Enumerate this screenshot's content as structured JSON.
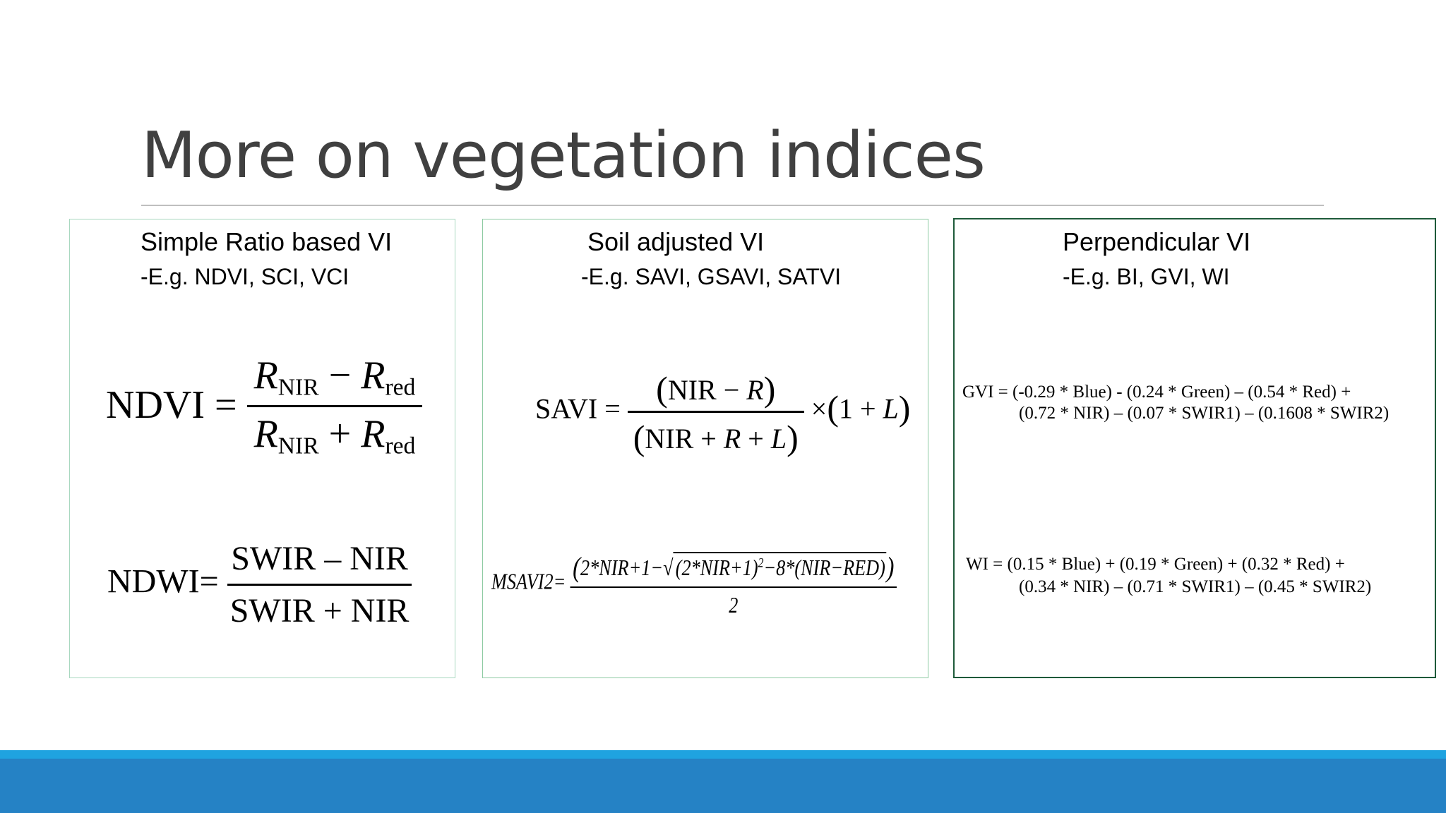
{
  "slide": {
    "title": "More on vegetation indices"
  },
  "panels": {
    "simple_ratio": {
      "heading": "Simple Ratio based VI",
      "examples": "-E.g. NDVI, SCI, VCI",
      "ndvi": {
        "lhs": "NDVI",
        "eq": "=",
        "r": "R",
        "nir": "NIR",
        "red": "red",
        "minus": "−",
        "plus": "+"
      },
      "ndwi": {
        "lhs": "NDWI",
        "eq": "=",
        "numerator": "SWIR – NIR",
        "denominator": "SWIR + NIR"
      }
    },
    "soil_adjusted": {
      "heading": "Soil adjusted VI",
      "examples": "-E.g. SAVI, GSAVI, SATVI",
      "savi": {
        "lhs": "SAVI",
        "eq": "=",
        "num_nir": "NIR",
        "num_op": "−",
        "r": "R",
        "den_nir": "NIR",
        "plus": "+",
        "l": "L",
        "times": "×",
        "one": "1"
      },
      "msavi2": {
        "lhs": "MSAVI2",
        "eq": "=",
        "part1": "2*",
        "nir": "NIR",
        "part2": "+1−",
        "part3": "(2*",
        "part4": "+1)",
        "exp": "2",
        "part5": "−8*(",
        "red": "NIR−RED",
        "part6": ")",
        "denominator": "2"
      }
    },
    "perpendicular": {
      "heading": "Perpendicular VI",
      "examples": "-E.g. BI, GVI, WI",
      "gvi": {
        "line1": "GVI = (-0.29 * Blue) - (0.24 * Green) – (0.54 * Red) +",
        "line2": "(0.72 * NIR) – (0.07 * SWIR1) – (0.1608 * SWIR2)"
      },
      "wi": {
        "line1": "WI = (0.15 * Blue) + (0.19 * Green) + (0.32 * Red) +",
        "line2": "(0.34 * NIR) – (0.71 * SWIR1) – (0.45 * SWIR2)"
      }
    }
  },
  "colors": {
    "title": "#404040",
    "bar_light": "#1fa3e0",
    "bar_dark": "#2582c5"
  }
}
